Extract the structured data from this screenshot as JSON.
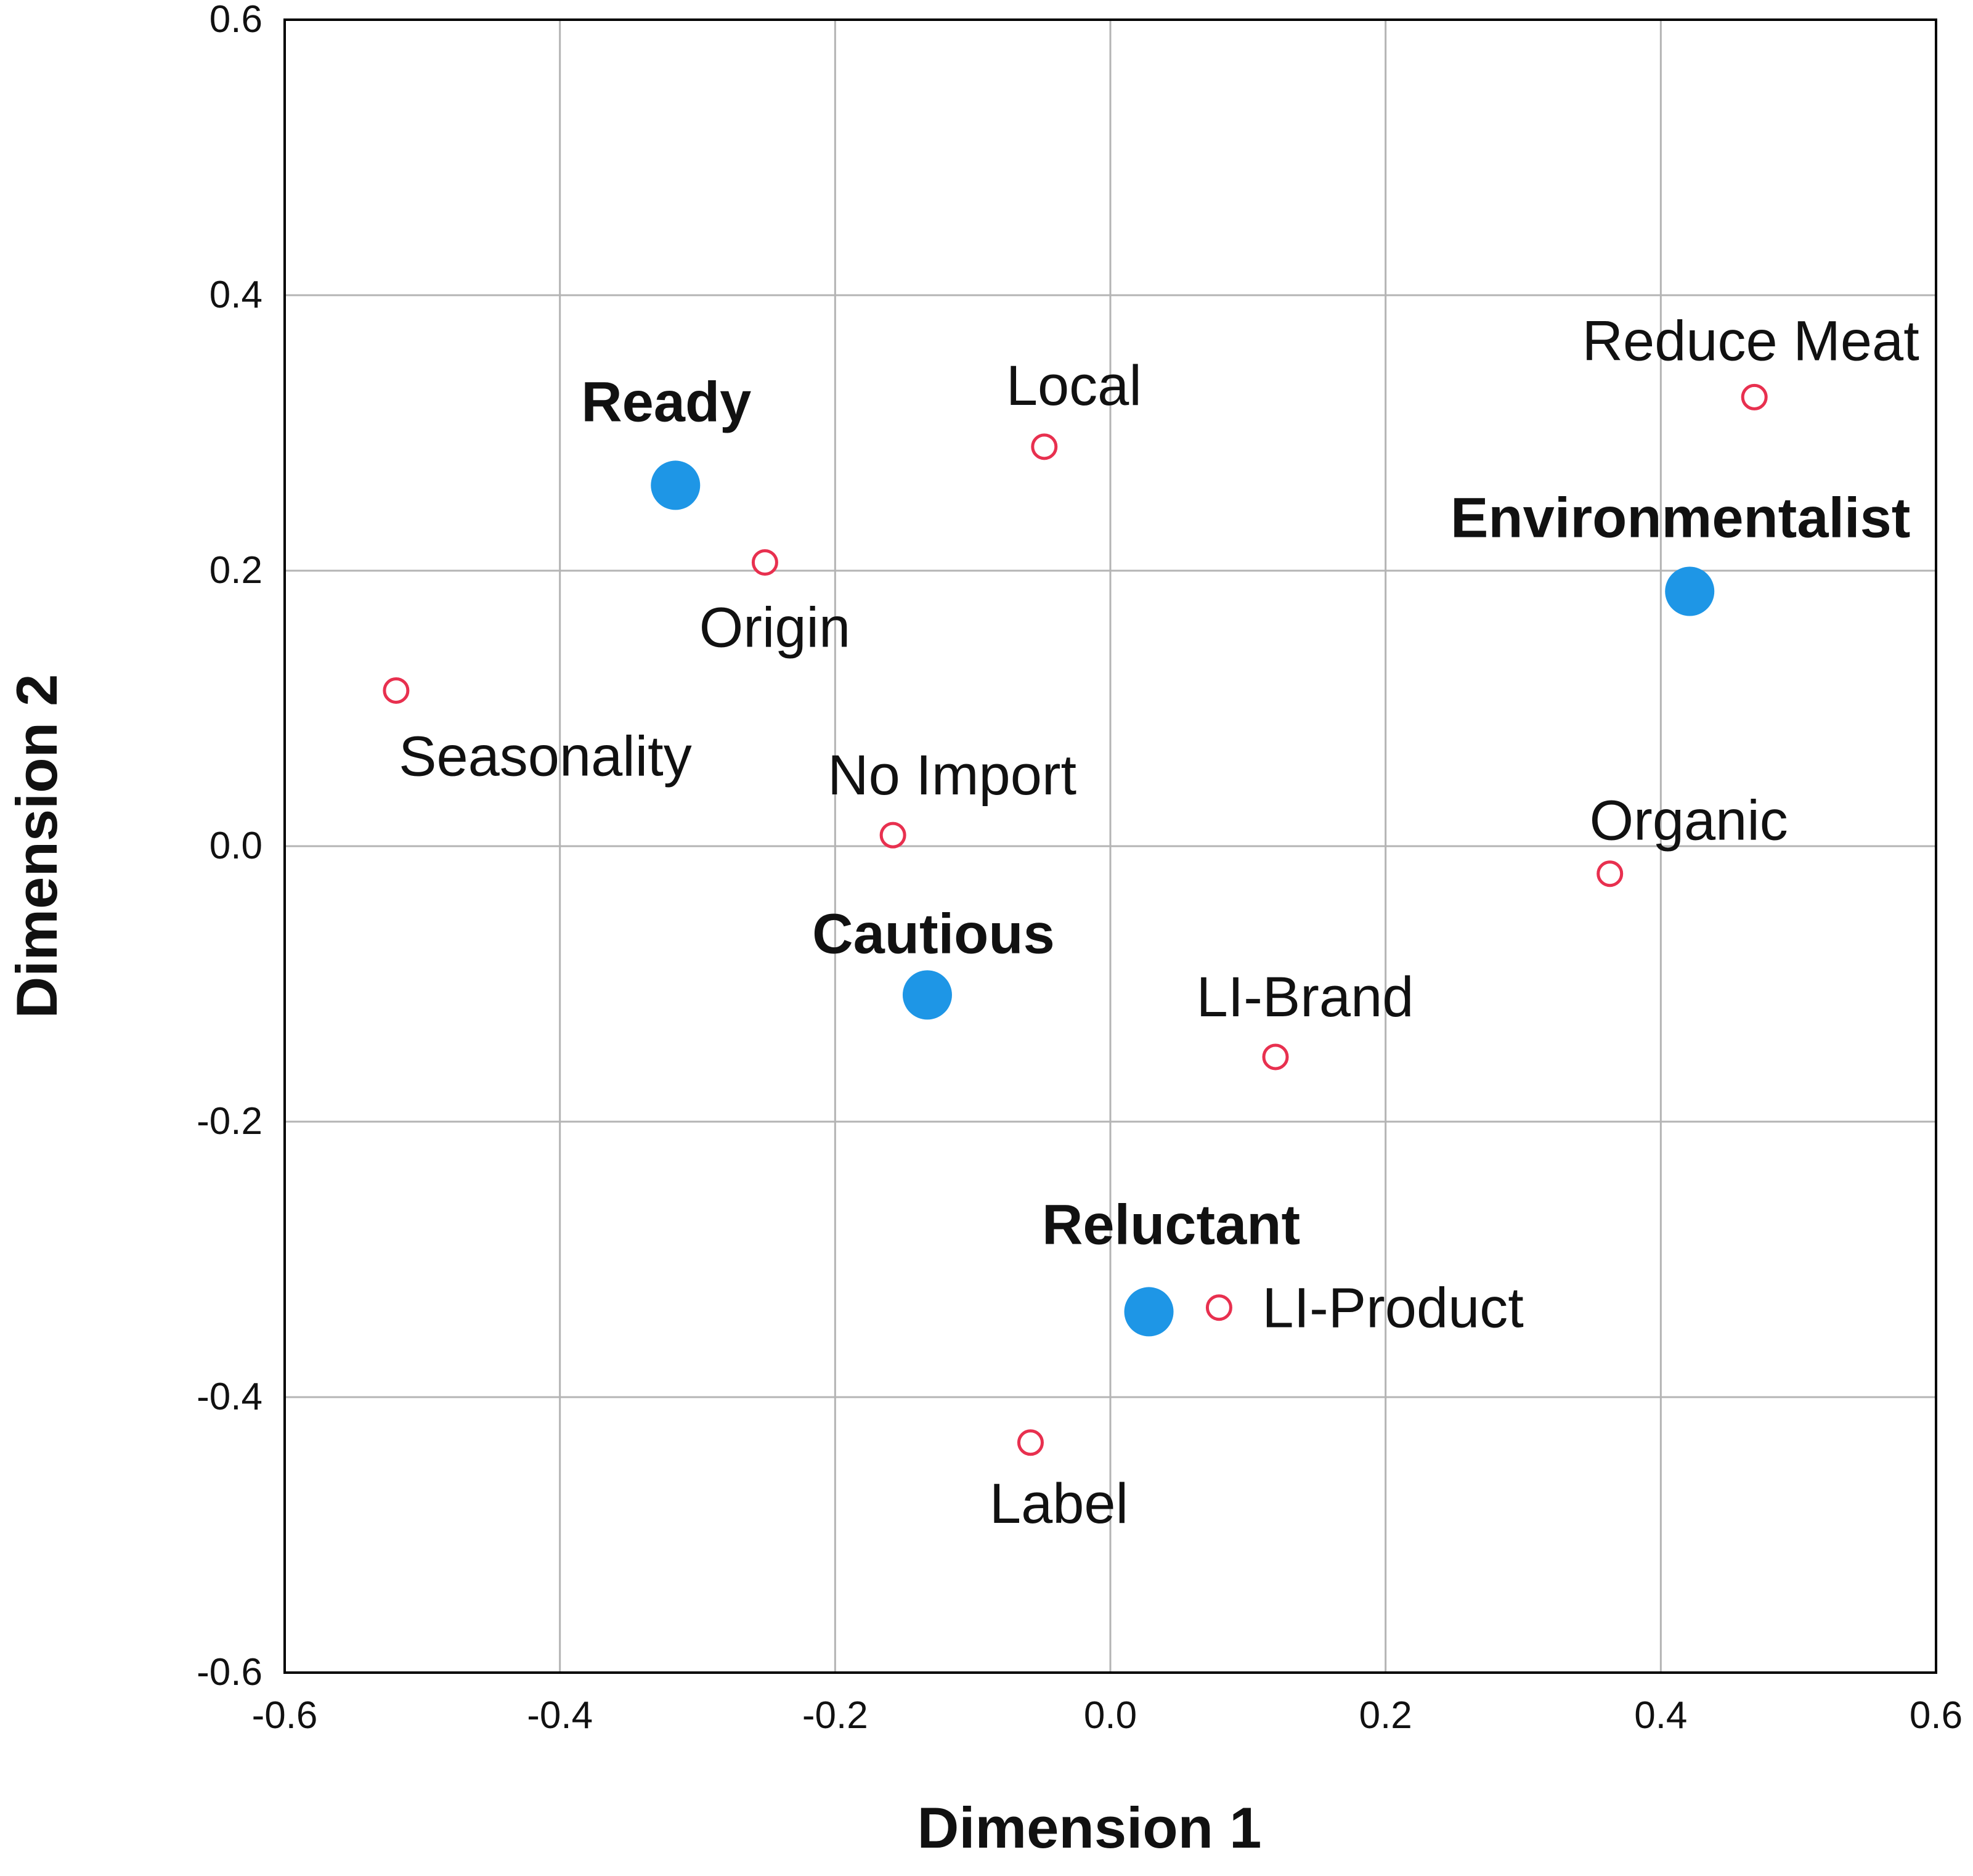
{
  "chart_data": {
    "type": "scatter",
    "title": "",
    "xlabel": "Dimension 1",
    "ylabel": "Dimension 2",
    "xlim": [
      -0.6,
      0.6
    ],
    "ylim": [
      -0.6,
      0.6
    ],
    "xticks": [
      "-0.6",
      "-0.4",
      "-0.2",
      "0.0",
      "0.2",
      "0.4",
      "0.6"
    ],
    "yticks": [
      "0.6",
      "0.4",
      "0.2",
      "0.0",
      "-0.2",
      "-0.4",
      "-0.6"
    ],
    "grid": true,
    "colors": {
      "segment": "#1e96e6",
      "attribute": "#e8304f"
    },
    "series": [
      {
        "name": "Consumer segments",
        "marker": "filled-circle",
        "points": [
          {
            "label": "Ready",
            "x": -0.316,
            "y": 0.262
          },
          {
            "label": "Environmentalist",
            "x": 0.421,
            "y": 0.185
          },
          {
            "label": "Cautious",
            "x": -0.133,
            "y": -0.108
          },
          {
            "label": "Reluctant",
            "x": 0.028,
            "y": -0.338
          }
        ]
      },
      {
        "name": "Attributes",
        "marker": "open-circle",
        "points": [
          {
            "label": "Reduce Meat",
            "x": 0.468,
            "y": 0.326
          },
          {
            "label": "Local",
            "x": -0.048,
            "y": 0.29
          },
          {
            "label": "Origin",
            "x": -0.251,
            "y": 0.206
          },
          {
            "label": "Seasonality",
            "x": -0.519,
            "y": 0.113
          },
          {
            "label": "No Import",
            "x": -0.158,
            "y": 0.008
          },
          {
            "label": "Organic",
            "x": 0.363,
            "y": -0.02
          },
          {
            "label": "LI-Brand",
            "x": 0.12,
            "y": -0.153
          },
          {
            "label": "LI-Product",
            "x": 0.079,
            "y": -0.335
          },
          {
            "label": "Label",
            "x": -0.058,
            "y": -0.433
          }
        ]
      }
    ]
  }
}
